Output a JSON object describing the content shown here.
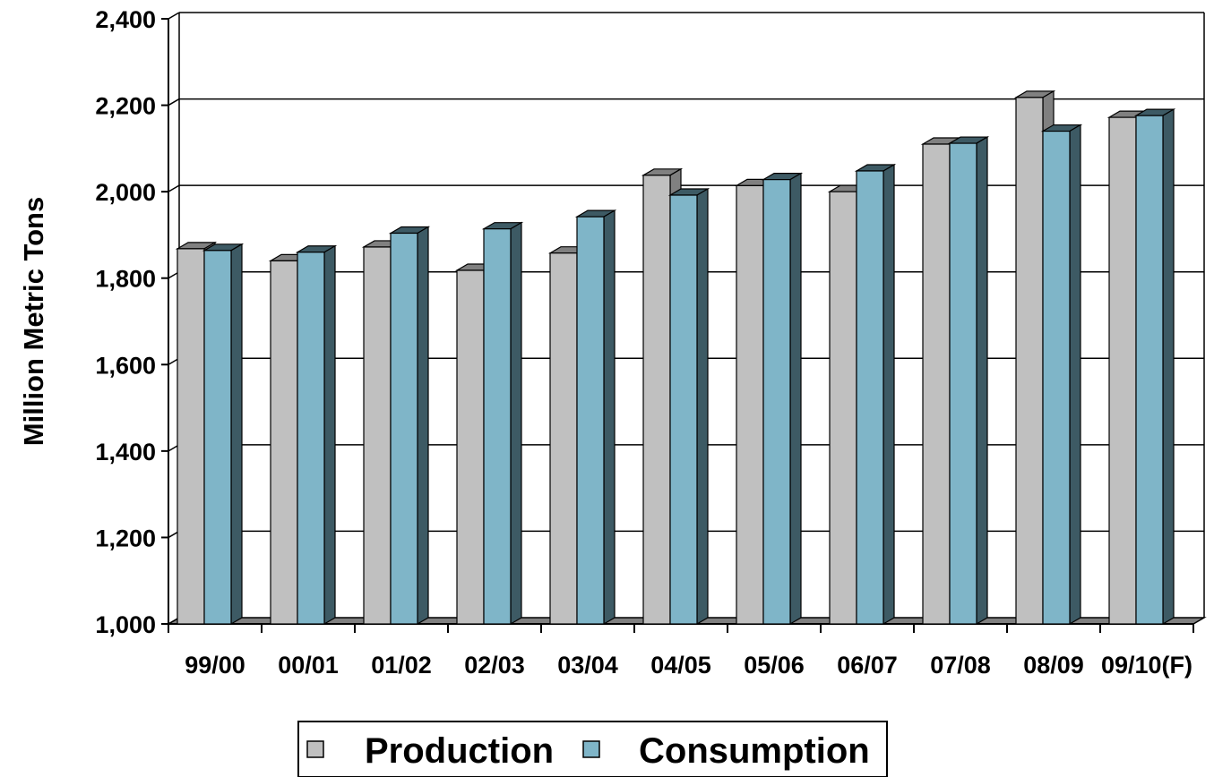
{
  "chart_data": {
    "type": "bar",
    "title": "",
    "xlabel": "",
    "ylabel": "Million Metric Tons",
    "ylim": [
      1000,
      2400
    ],
    "yticks": [
      1000,
      1200,
      1400,
      1600,
      1800,
      2000,
      2200,
      2400
    ],
    "ytick_labels": [
      "1,000",
      "1,200",
      "1,400",
      "1,600",
      "1,800",
      "2,000",
      "2,200",
      "2,400"
    ],
    "grid": true,
    "legend_position": "bottom",
    "categories": [
      "99/00",
      "00/01",
      "01/02",
      "02/03",
      "03/04",
      "04/05",
      "05/06",
      "06/07",
      "07/08",
      "08/09",
      "09/10(F)"
    ],
    "series": [
      {
        "name": "Production",
        "color": "#c0c0c0",
        "side_color": "#808080",
        "values": [
          1868,
          1840,
          1872,
          1818,
          1858,
          2038,
          2014,
          2000,
          2110,
          2218,
          2172
        ]
      },
      {
        "name": "Consumption",
        "color": "#7fb5c8",
        "side_color": "#3d5a64",
        "values": [
          1864,
          1860,
          1904,
          1914,
          1942,
          1992,
          2028,
          2048,
          2112,
          2140,
          2176
        ]
      }
    ]
  }
}
